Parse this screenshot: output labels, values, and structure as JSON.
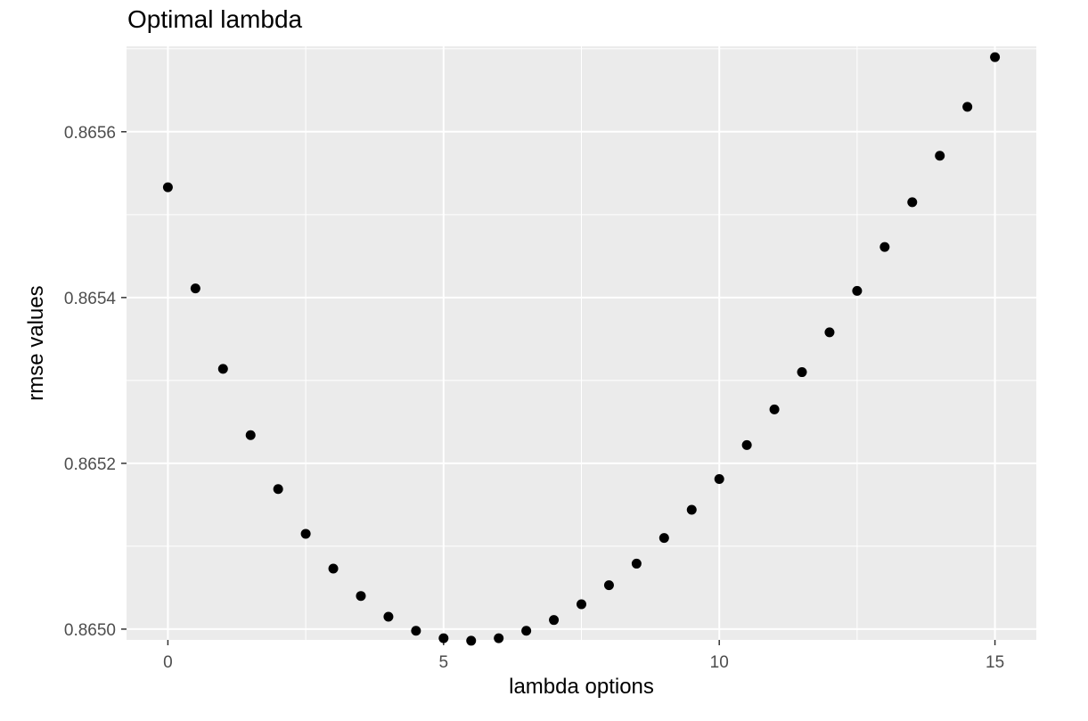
{
  "chart_data": {
    "type": "scatter",
    "title": "Optimal lambda",
    "xlabel": "lambda options",
    "ylabel": "rmse values",
    "xlim": [
      -0.75,
      15.75
    ],
    "ylim": [
      0.864987,
      0.865703
    ],
    "x_ticks": [
      0,
      5,
      10,
      15
    ],
    "x_tick_labels": [
      "0",
      "5",
      "10",
      "15"
    ],
    "y_ticks": [
      0.865,
      0.8652,
      0.8654,
      0.8656
    ],
    "y_tick_labels": [
      "0.8650",
      "0.8652",
      "0.8654",
      "0.8656"
    ],
    "grid": true,
    "legend": "none",
    "colors": {
      "panel_background": "#ebebeb",
      "grid_line": "#ffffff",
      "point": "#000000",
      "tick_label": "#4d4d4d",
      "tick_mark": "#333333"
    },
    "series": [
      {
        "x": [
          0,
          0.5,
          1,
          1.5,
          2,
          2.5,
          3,
          3.5,
          4,
          4.5,
          5,
          5.5,
          6,
          6.5,
          7,
          7.5,
          8,
          8.5,
          9,
          9.5,
          10,
          10.5,
          11,
          11.5,
          12,
          12.5,
          13,
          13.5,
          14,
          14.5,
          15
        ],
        "y": [
          0.865533,
          0.865411,
          0.865314,
          0.865234,
          0.865169,
          0.865115,
          0.865073,
          0.86504,
          0.865015,
          0.864998,
          0.864989,
          0.864986,
          0.864989,
          0.864998,
          0.865011,
          0.86503,
          0.865053,
          0.865079,
          0.86511,
          0.865144,
          0.865181,
          0.865222,
          0.865265,
          0.86531,
          0.865358,
          0.865408,
          0.865461,
          0.865515,
          0.865571,
          0.86563,
          0.86569
        ]
      }
    ]
  }
}
